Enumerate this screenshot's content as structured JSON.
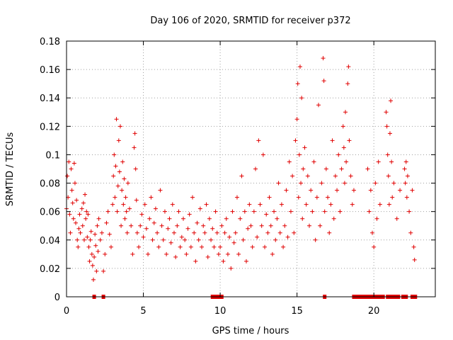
{
  "chart_data": {
    "type": "scatter",
    "title": "Day 106 of 2020, SRMTID for receiver p372",
    "xlabel": "GPS time / hours",
    "ylabel": "SRMTID / TECUs",
    "xlim": [
      0,
      24
    ],
    "ylim": [
      0,
      0.18
    ],
    "x_ticks": [
      0,
      5,
      10,
      15,
      20
    ],
    "x_tick_labels": [
      "0",
      "5",
      "10",
      "15",
      "20"
    ],
    "y_ticks": [
      0,
      0.02,
      0.04,
      0.06,
      0.08,
      0.1,
      0.12,
      0.14,
      0.16,
      0.18
    ],
    "y_tick_labels": [
      "0",
      "0.02",
      "0.04",
      "0.06",
      "0.08",
      "0.1",
      "0.12",
      "0.14",
      "0.16",
      "0.18"
    ],
    "grid": true,
    "marker": "plus",
    "color": "#e00000",
    "series": [
      {
        "name": "SRMTID",
        "points": [
          [
            0.0,
            0.062
          ],
          [
            0.05,
            0.085
          ],
          [
            0.1,
            0.07
          ],
          [
            0.15,
            0.095
          ],
          [
            0.2,
            0.058
          ],
          [
            0.25,
            0.045
          ],
          [
            0.3,
            0.09
          ],
          [
            0.35,
            0.075
          ],
          [
            0.4,
            0.066
          ],
          [
            0.45,
            0.055
          ],
          [
            0.5,
            0.094
          ],
          [
            0.55,
            0.08
          ],
          [
            0.6,
            0.052
          ],
          [
            0.65,
            0.068
          ],
          [
            0.7,
            0.04
          ],
          [
            0.75,
            0.035
          ],
          [
            0.8,
            0.048
          ],
          [
            0.85,
            0.058
          ],
          [
            0.9,
            0.045
          ],
          [
            1.0,
            0.062
          ],
          [
            1.05,
            0.05
          ],
          [
            1.1,
            0.066
          ],
          [
            1.15,
            0.04
          ],
          [
            1.2,
            0.072
          ],
          [
            1.25,
            0.055
          ],
          [
            1.3,
            0.06
          ],
          [
            1.35,
            0.042
          ],
          [
            1.4,
            0.058
          ],
          [
            1.45,
            0.035
          ],
          [
            1.5,
            0.025
          ],
          [
            1.55,
            0.04
          ],
          [
            1.6,
            0.046
          ],
          [
            1.65,
            0.03
          ],
          [
            1.7,
            0.022
          ],
          [
            1.75,
            0.012
          ],
          [
            1.8,
            0.028
          ],
          [
            1.85,
            0.044
          ],
          [
            1.9,
            0.036
          ],
          [
            1.95,
            0.018
          ],
          [
            2.0,
            0.05
          ],
          [
            2.05,
            0.032
          ],
          [
            2.1,
            0.055
          ],
          [
            2.2,
            0.04
          ],
          [
            2.3,
            0.045
          ],
          [
            2.4,
            0.018
          ],
          [
            2.5,
            0.03
          ],
          [
            2.6,
            0.052
          ],
          [
            2.7,
            0.06
          ],
          [
            2.8,
            0.044
          ],
          [
            2.9,
            0.035
          ],
          [
            3.0,
            0.065
          ],
          [
            3.05,
            0.085
          ],
          [
            3.1,
            0.1
          ],
          [
            3.15,
            0.07
          ],
          [
            3.2,
            0.092
          ],
          [
            3.25,
            0.125
          ],
          [
            3.3,
            0.06
          ],
          [
            3.35,
            0.078
          ],
          [
            3.4,
            0.11
          ],
          [
            3.45,
            0.088
          ],
          [
            3.5,
            0.12
          ],
          [
            3.55,
            0.05
          ],
          [
            3.6,
            0.075
          ],
          [
            3.65,
            0.095
          ],
          [
            3.7,
            0.065
          ],
          [
            3.75,
            0.083
          ],
          [
            3.8,
            0.055
          ],
          [
            3.85,
            0.07
          ],
          [
            3.9,
            0.06
          ],
          [
            3.95,
            0.045
          ],
          [
            4.0,
            0.08
          ],
          [
            4.1,
            0.062
          ],
          [
            4.2,
            0.05
          ],
          [
            4.3,
            0.03
          ],
          [
            4.4,
            0.105
          ],
          [
            4.45,
            0.115
          ],
          [
            4.5,
            0.09
          ],
          [
            4.55,
            0.068
          ],
          [
            4.6,
            0.045
          ],
          [
            4.7,
            0.035
          ],
          [
            4.8,
            0.05
          ],
          [
            4.9,
            0.058
          ],
          [
            5.0,
            0.042
          ],
          [
            5.1,
            0.065
          ],
          [
            5.2,
            0.048
          ],
          [
            5.3,
            0.03
          ],
          [
            5.4,
            0.055
          ],
          [
            5.5,
            0.07
          ],
          [
            5.6,
            0.04
          ],
          [
            5.7,
            0.052
          ],
          [
            5.8,
            0.062
          ],
          [
            5.9,
            0.045
          ],
          [
            6.0,
            0.035
          ],
          [
            6.1,
            0.075
          ],
          [
            6.2,
            0.05
          ],
          [
            6.3,
            0.04
          ],
          [
            6.4,
            0.06
          ],
          [
            6.5,
            0.03
          ],
          [
            6.6,
            0.048
          ],
          [
            6.7,
            0.055
          ],
          [
            6.8,
            0.038
          ],
          [
            6.9,
            0.065
          ],
          [
            7.0,
            0.045
          ],
          [
            7.1,
            0.028
          ],
          [
            7.2,
            0.05
          ],
          [
            7.3,
            0.06
          ],
          [
            7.4,
            0.035
          ],
          [
            7.5,
            0.042
          ],
          [
            7.6,
            0.055
          ],
          [
            7.7,
            0.04
          ],
          [
            7.8,
            0.03
          ],
          [
            7.9,
            0.048
          ],
          [
            8.0,
            0.058
          ],
          [
            8.1,
            0.035
          ],
          [
            8.2,
            0.07
          ],
          [
            8.3,
            0.045
          ],
          [
            8.4,
            0.025
          ],
          [
            8.5,
            0.052
          ],
          [
            8.6,
            0.04
          ],
          [
            8.7,
            0.062
          ],
          [
            8.8,
            0.035
          ],
          [
            8.9,
            0.05
          ],
          [
            9.0,
            0.045
          ],
          [
            9.1,
            0.065
          ],
          [
            9.2,
            0.028
          ],
          [
            9.3,
            0.055
          ],
          [
            9.4,
            0.04
          ],
          [
            9.5,
            0.048
          ],
          [
            9.6,
            0.035
          ],
          [
            9.7,
            0.06
          ],
          [
            9.8,
            0.045
          ],
          [
            9.9,
            0.03
          ],
          [
            10.0,
            0.035
          ],
          [
            10.1,
            0.05
          ],
          [
            10.2,
            0.025
          ],
          [
            10.3,
            0.045
          ],
          [
            10.4,
            0.055
          ],
          [
            10.5,
            0.03
          ],
          [
            10.6,
            0.042
          ],
          [
            10.7,
            0.02
          ],
          [
            10.8,
            0.06
          ],
          [
            10.9,
            0.038
          ],
          [
            11.0,
            0.045
          ],
          [
            11.1,
            0.07
          ],
          [
            11.2,
            0.03
          ],
          [
            11.3,
            0.055
          ],
          [
            11.4,
            0.085
          ],
          [
            11.5,
            0.04
          ],
          [
            11.6,
            0.06
          ],
          [
            11.7,
            0.025
          ],
          [
            11.8,
            0.048
          ],
          [
            11.9,
            0.065
          ],
          [
            12.0,
            0.05
          ],
          [
            12.1,
            0.035
          ],
          [
            12.2,
            0.06
          ],
          [
            12.3,
            0.09
          ],
          [
            12.4,
            0.042
          ],
          [
            12.5,
            0.11
          ],
          [
            12.6,
            0.065
          ],
          [
            12.7,
            0.05
          ],
          [
            12.8,
            0.1
          ],
          [
            12.9,
            0.035
          ],
          [
            13.0,
            0.058
          ],
          [
            13.1,
            0.045
          ],
          [
            13.2,
            0.07
          ],
          [
            13.3,
            0.05
          ],
          [
            13.4,
            0.03
          ],
          [
            13.5,
            0.06
          ],
          [
            13.6,
            0.04
          ],
          [
            13.7,
            0.055
          ],
          [
            13.8,
            0.08
          ],
          [
            13.9,
            0.045
          ],
          [
            14.0,
            0.065
          ],
          [
            14.1,
            0.035
          ],
          [
            14.2,
            0.05
          ],
          [
            14.3,
            0.075
          ],
          [
            14.4,
            0.042
          ],
          [
            14.5,
            0.095
          ],
          [
            14.6,
            0.06
          ],
          [
            14.7,
            0.085
          ],
          [
            14.8,
            0.045
          ],
          [
            14.9,
            0.11
          ],
          [
            15.0,
            0.125
          ],
          [
            15.05,
            0.15
          ],
          [
            15.1,
            0.07
          ],
          [
            15.15,
            0.1
          ],
          [
            15.2,
            0.162
          ],
          [
            15.25,
            0.08
          ],
          [
            15.3,
            0.14
          ],
          [
            15.35,
            0.055
          ],
          [
            15.4,
            0.09
          ],
          [
            15.5,
            0.105
          ],
          [
            15.6,
            0.065
          ],
          [
            15.7,
            0.085
          ],
          [
            15.8,
            0.05
          ],
          [
            15.9,
            0.075
          ],
          [
            16.0,
            0.06
          ],
          [
            16.1,
            0.095
          ],
          [
            16.2,
            0.04
          ],
          [
            16.3,
            0.07
          ],
          [
            16.4,
            0.135
          ],
          [
            16.5,
            0.05
          ],
          [
            16.6,
            0.08
          ],
          [
            16.7,
            0.168
          ],
          [
            16.75,
            0.152
          ],
          [
            16.8,
            0.06
          ],
          [
            16.9,
            0.09
          ],
          [
            17.0,
            0.07
          ],
          [
            17.1,
            0.045
          ],
          [
            17.2,
            0.065
          ],
          [
            17.3,
            0.11
          ],
          [
            17.4,
            0.055
          ],
          [
            17.5,
            0.085
          ],
          [
            17.6,
            0.075
          ],
          [
            17.7,
            0.1
          ],
          [
            17.8,
            0.06
          ],
          [
            17.9,
            0.09
          ],
          [
            18.0,
            0.12
          ],
          [
            18.05,
            0.105
          ],
          [
            18.1,
            0.08
          ],
          [
            18.15,
            0.13
          ],
          [
            18.2,
            0.095
          ],
          [
            18.3,
            0.15
          ],
          [
            18.35,
            0.162
          ],
          [
            18.4,
            0.11
          ],
          [
            18.5,
            0.085
          ],
          [
            18.6,
            0.065
          ],
          [
            18.7,
            0.075
          ],
          [
            19.6,
            0.09
          ],
          [
            19.7,
            0.06
          ],
          [
            19.8,
            0.075
          ],
          [
            19.9,
            0.045
          ],
          [
            20.0,
            0.035
          ],
          [
            20.1,
            0.08
          ],
          [
            20.2,
            0.055
          ],
          [
            20.3,
            0.095
          ],
          [
            20.4,
            0.065
          ],
          [
            20.8,
            0.13
          ],
          [
            20.85,
            0.12
          ],
          [
            20.9,
            0.1
          ],
          [
            20.95,
            0.085
          ],
          [
            21.0,
            0.065
          ],
          [
            21.05,
            0.115
          ],
          [
            21.1,
            0.138
          ],
          [
            21.15,
            0.095
          ],
          [
            21.2,
            0.07
          ],
          [
            21.3,
            0.08
          ],
          [
            21.5,
            0.055
          ],
          [
            21.7,
            0.075
          ],
          [
            22.0,
            0.09
          ],
          [
            22.05,
            0.08
          ],
          [
            22.1,
            0.095
          ],
          [
            22.15,
            0.07
          ],
          [
            22.2,
            0.085
          ],
          [
            22.3,
            0.06
          ],
          [
            22.4,
            0.045
          ],
          [
            22.5,
            0.075
          ],
          [
            22.6,
            0.035
          ],
          [
            22.65,
            0.026
          ]
        ],
        "zero_hours": [
          1.8,
          2.4,
          9.5,
          9.6,
          9.7,
          9.8,
          9.9,
          10.0,
          10.1,
          16.8,
          18.7,
          18.9,
          19.0,
          19.1,
          19.3,
          19.4,
          19.6,
          19.7,
          19.9,
          20.0,
          20.2,
          20.3,
          20.5,
          20.6,
          20.9,
          21.1,
          21.3,
          21.4,
          21.6,
          21.9,
          22.0,
          22.1,
          22.5,
          22.7
        ]
      }
    ]
  }
}
